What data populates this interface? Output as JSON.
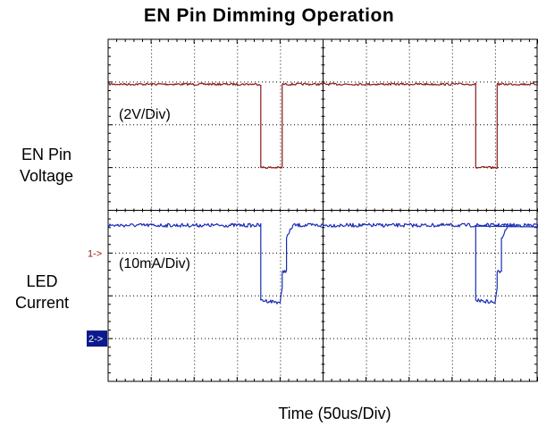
{
  "chart_data": {
    "type": "line",
    "title": "EN Pin Dimming Operation",
    "xlabel": "Time (50us/Div)",
    "x_unit": "div",
    "xlim": [
      0,
      10
    ],
    "ylim": [
      0,
      8
    ],
    "grid": true,
    "series": [
      {
        "name": "EN Pin Voltage",
        "channel_marker": "1->",
        "scale_label": "(2V/Div)",
        "color": "#8b1a1a",
        "x": [
          0.0,
          3.55,
          3.55,
          4.05,
          4.05,
          8.55,
          8.55,
          9.05,
          9.05,
          10.0
        ],
        "y": [
          6.95,
          6.95,
          5.0,
          5.0,
          6.95,
          6.95,
          5.0,
          5.0,
          6.95,
          6.95
        ]
      },
      {
        "name": "LED Current",
        "channel_marker": "2->",
        "scale_label": "(10mA/Div)",
        "color": "#1a2db5",
        "x": [
          0.0,
          3.55,
          3.55,
          3.95,
          4.0,
          4.05,
          4.05,
          4.15,
          4.15,
          4.3,
          10.0
        ],
        "y": [
          3.65,
          3.65,
          1.9,
          1.85,
          1.85,
          2.15,
          2.55,
          2.6,
          3.35,
          3.65,
          3.65
        ],
        "repeat_period_div": 5
      }
    ]
  }
}
